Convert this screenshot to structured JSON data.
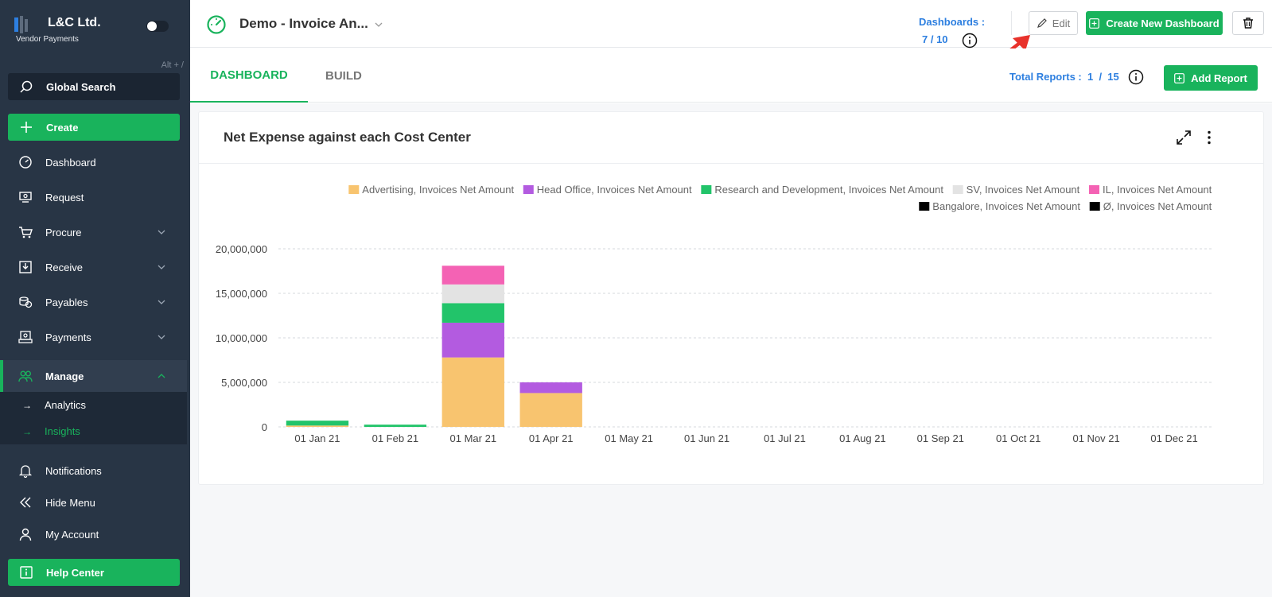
{
  "brand": {
    "title": "L&C Ltd.",
    "subtitle": "Vendor Payments",
    "shortcut": "Alt + /"
  },
  "sidebar": {
    "search_label": "Global Search",
    "create_label": "Create",
    "items": [
      {
        "label": "Dashboard",
        "icon": "gauge-icon",
        "expandable": false
      },
      {
        "label": "Request",
        "icon": "request-icon",
        "expandable": false
      },
      {
        "label": "Procure",
        "icon": "cart-icon",
        "expandable": true
      },
      {
        "label": "Receive",
        "icon": "receive-icon",
        "expandable": true
      },
      {
        "label": "Payables",
        "icon": "coins-icon",
        "expandable": true
      },
      {
        "label": "Payments",
        "icon": "payments-icon",
        "expandable": true
      },
      {
        "label": "Manage",
        "icon": "people-icon",
        "expandable": true,
        "expanded": true
      }
    ],
    "submenu": [
      {
        "label": "Analytics",
        "current": false
      },
      {
        "label": "Insights",
        "current": true
      }
    ],
    "bottom_items": [
      {
        "label": "Notifications",
        "icon": "bell-icon"
      },
      {
        "label": "Hide Menu",
        "icon": "double-chevron-left-icon"
      },
      {
        "label": "My Account",
        "icon": "user-icon"
      }
    ],
    "help_label": "Help Center"
  },
  "header": {
    "dashboard_name": "Demo - Invoice An...",
    "dashboards_label": "Dashboards :",
    "dashboards_count": "7 / 10",
    "edit_label": "Edit",
    "create_dashboard_label": "Create New Dashboard"
  },
  "tabs": {
    "dashboard": "DASHBOARD",
    "build": "BUILD",
    "total_reports_label": "Total Reports :",
    "total_reports_value": "1  /  15",
    "add_report_label": "Add Report"
  },
  "colors": {
    "accent": "#19b35c",
    "link_blue": "#2d7fe0",
    "sidebar_bg": "#283545",
    "annotation_red": "#e8322b"
  },
  "report": {
    "title": "Net Expense against each Cost Center"
  },
  "chart_data": {
    "type": "bar",
    "stacked": true,
    "title": "",
    "xlabel": "",
    "ylabel": "",
    "ylim": [
      0,
      20000000
    ],
    "yticks": [
      "20,000,000",
      "15,000,000",
      "10,000,000",
      "5,000,000",
      "0"
    ],
    "ytick_values": [
      20000000,
      15000000,
      10000000,
      5000000,
      0
    ],
    "grid": true,
    "legend_position": "top-right",
    "categories": [
      "01 Jan 21",
      "01 Feb 21",
      "01 Mar 21",
      "01 Apr 21",
      "01 May 21",
      "01 Jun 21",
      "01 Jul 21",
      "01 Aug 21",
      "01 Sep 21",
      "01 Oct 21",
      "01 Nov 21",
      "01 Dec 21"
    ],
    "series": [
      {
        "name": "Advertising, Invoices Net Amount",
        "color": "#f8c46f",
        "values": [
          150000,
          0,
          7800000,
          3800000,
          0,
          0,
          0,
          0,
          0,
          0,
          0,
          0
        ]
      },
      {
        "name": "Head Office, Invoices Net Amount",
        "color": "#b35be0",
        "values": [
          0,
          0,
          3900000,
          1200000,
          0,
          0,
          0,
          0,
          0,
          0,
          0,
          0
        ]
      },
      {
        "name": "Research and Development, Invoices Net Amount",
        "color": "#22c46a",
        "values": [
          550000,
          250000,
          2200000,
          0,
          0,
          0,
          0,
          0,
          0,
          0,
          0,
          0
        ]
      },
      {
        "name": "SV, Invoices Net Amount",
        "color": "#e3e3e3",
        "values": [
          0,
          0,
          2100000,
          0,
          0,
          0,
          0,
          0,
          0,
          0,
          0,
          0
        ]
      },
      {
        "name": "IL, Invoices Net Amount",
        "color": "#f462b4",
        "values": [
          0,
          0,
          2100000,
          0,
          0,
          0,
          0,
          0,
          0,
          0,
          0,
          0
        ]
      },
      {
        "name": "Bangalore, Invoices Net Amount",
        "color": "#000000",
        "values": [
          0,
          0,
          0,
          0,
          0,
          0,
          0,
          0,
          0,
          0,
          0,
          0
        ]
      },
      {
        "name": "Ø, Invoices Net Amount",
        "color": "#000000",
        "values": [
          0,
          0,
          0,
          0,
          0,
          0,
          0,
          0,
          0,
          0,
          0,
          0
        ]
      }
    ]
  }
}
